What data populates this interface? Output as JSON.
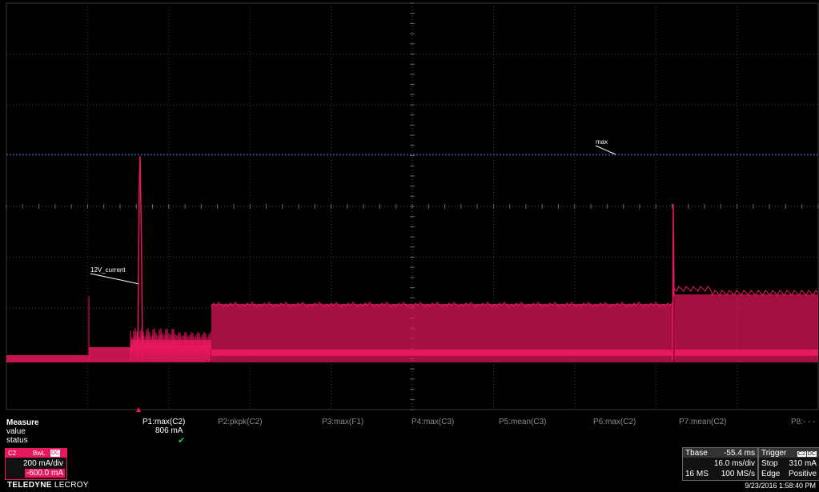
{
  "trace": {
    "label": "12V_current",
    "max_cursor_label": "max",
    "color": "#e8185c",
    "cursor_color": "#4a6ee0"
  },
  "measure": {
    "title": "Measure",
    "row_value": "value",
    "row_status": "status",
    "params": [
      {
        "label": "P1:max(C2)",
        "active": true
      },
      {
        "label": "P2:pkpk(C2)",
        "active": false
      },
      {
        "label": "P3:max(F1)",
        "active": false
      },
      {
        "label": "P4:max(C3)",
        "active": false
      },
      {
        "label": "P5:mean(C3)",
        "active": false
      },
      {
        "label": "P6:max(C2)",
        "active": false
      },
      {
        "label": "P7:mean(C2)",
        "active": false
      },
      {
        "label": "P8:- - -",
        "active": false
      }
    ],
    "p1_value": "806 mA",
    "p1_status_icon": "checkmark-icon"
  },
  "channel": {
    "name": "C2",
    "bwl": "BwL",
    "coupling": "DC",
    "vdiv": "200 mA/div",
    "offset": "-600.0 mA"
  },
  "timebase": {
    "title": "Tbase",
    "delay": "-55.4 ms",
    "tdiv": "16.0 ms/div",
    "points": "16 MS",
    "rate": "100 MS/s"
  },
  "trigger": {
    "title": "Trigger",
    "source": "C2",
    "coupling": "DC",
    "mode": "Stop",
    "level": "310 mA",
    "type": "Edge",
    "slope": "Positive"
  },
  "brand": {
    "main": "TELEDYNE",
    "sub": "LECROY"
  },
  "timestamp": "9/23/2016 1:58:40 PM"
}
